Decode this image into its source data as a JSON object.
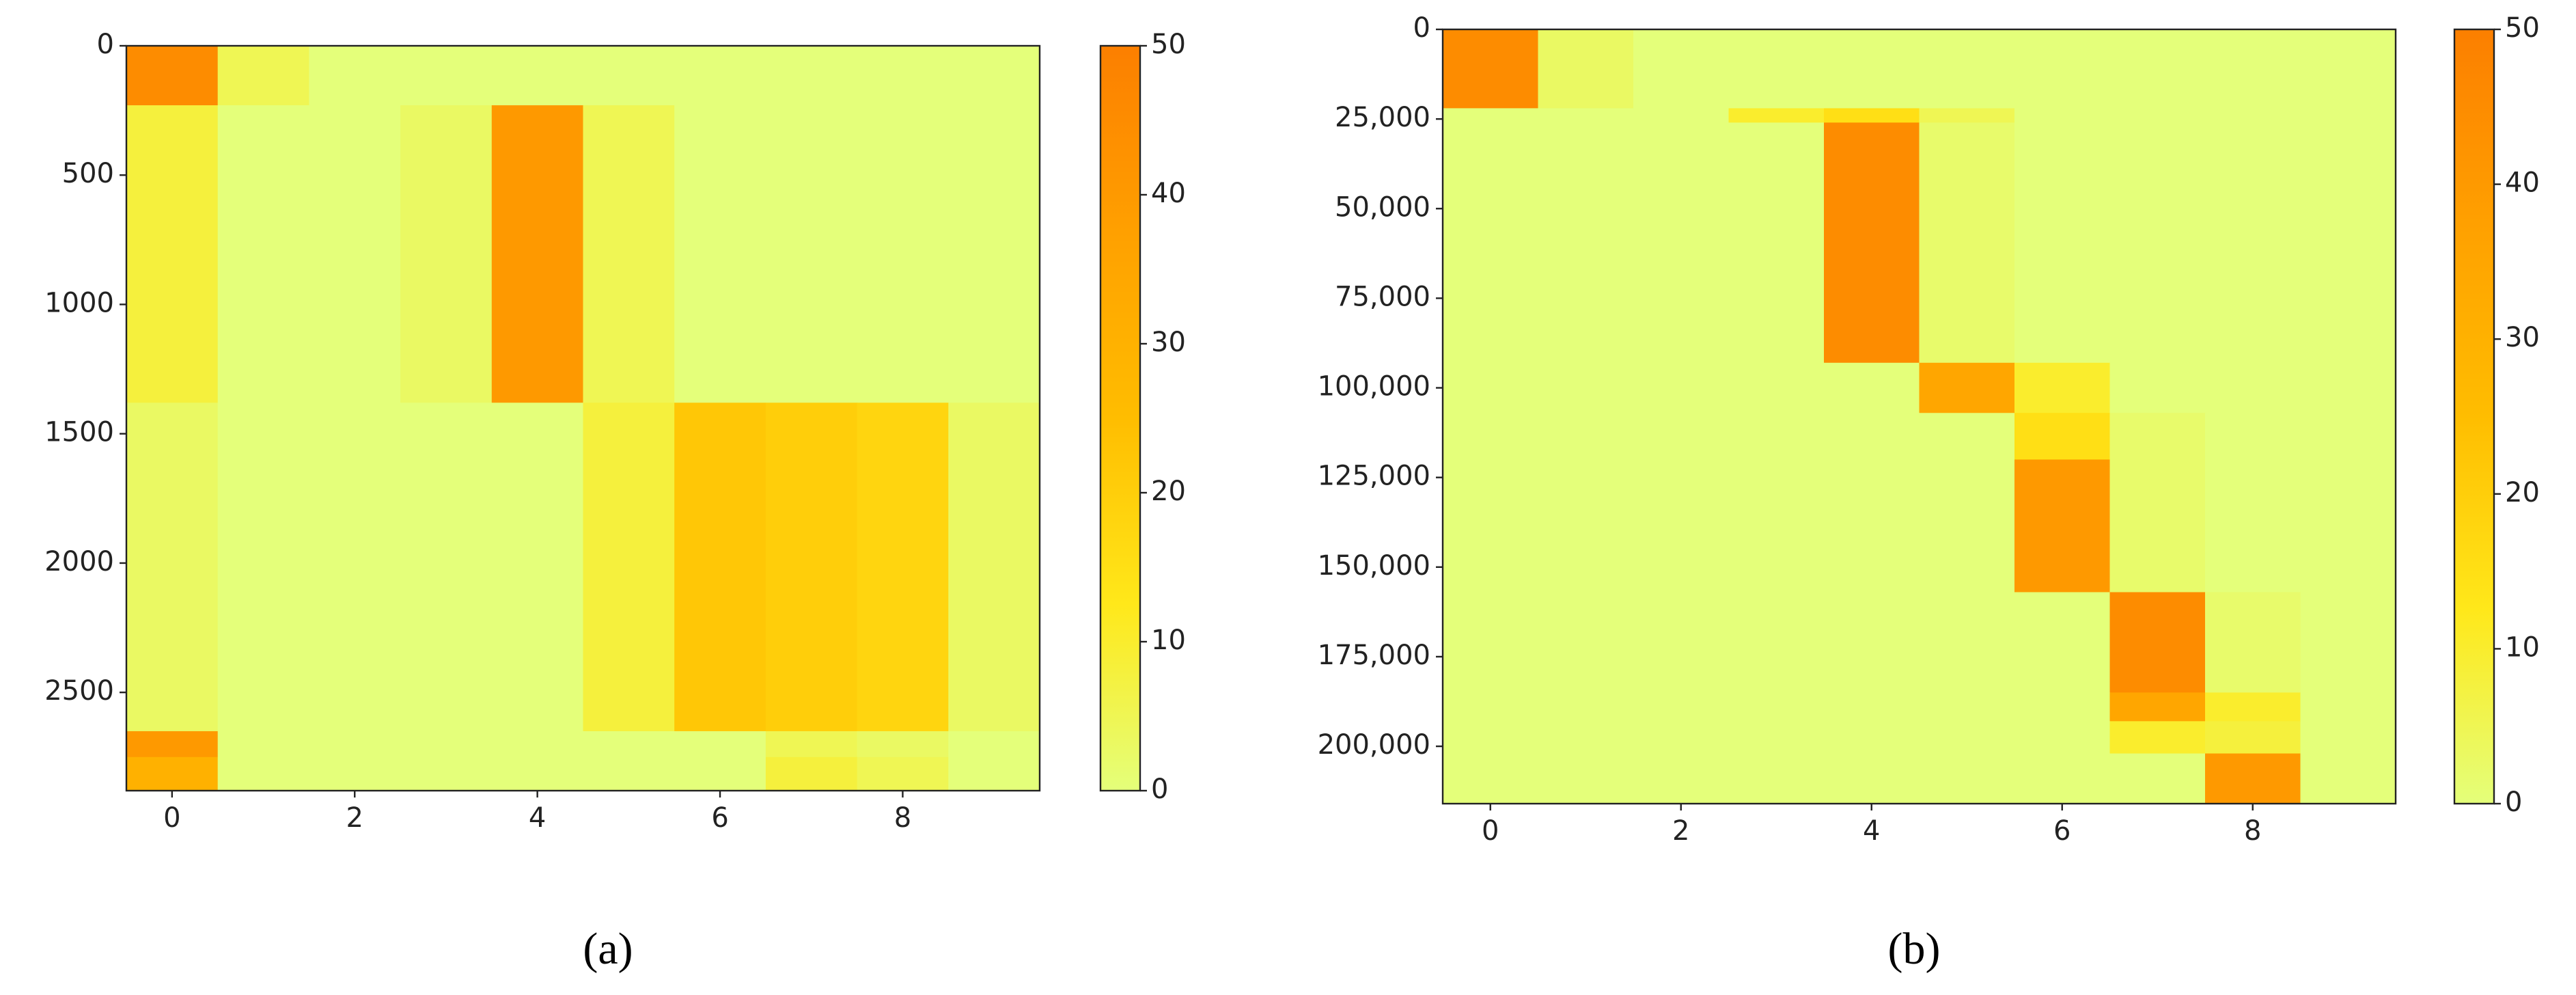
{
  "chart_data": [
    {
      "type": "heatmap",
      "caption": "(a)",
      "x": [
        0,
        1,
        2,
        3,
        4,
        5,
        6,
        7,
        8,
        9
      ],
      "xlim": [
        -0.5,
        9.5
      ],
      "xticks": [
        0,
        2,
        4,
        6,
        8
      ],
      "y_edges": [
        0,
        230,
        1380,
        2650,
        2750,
        2880
      ],
      "values": [
        [
          45,
          5,
          0,
          0,
          0,
          0,
          0,
          0,
          0,
          0
        ],
        [
          8,
          0,
          0,
          3,
          40,
          5,
          0,
          0,
          0,
          0
        ],
        [
          3,
          0,
          0,
          0,
          0,
          8,
          22,
          20,
          18,
          3
        ],
        [
          40,
          0,
          0,
          0,
          0,
          0,
          0,
          5,
          3,
          0
        ],
        [
          30,
          0,
          0,
          0,
          0,
          0,
          0,
          8,
          5,
          0
        ]
      ],
      "ylim": [
        2880,
        0
      ],
      "yticks": [
        0,
        500,
        1000,
        1500,
        2000,
        2500
      ],
      "clim": [
        0,
        50
      ],
      "cticks": [
        0,
        10,
        20,
        30,
        40,
        50
      ],
      "colormap": [
        "#e4ff7a",
        "#ffe81a",
        "#ffbd00",
        "#ffa000",
        "#fc7f00"
      ]
    },
    {
      "type": "heatmap",
      "caption": "(b)",
      "x": [
        0,
        1,
        2,
        3,
        4,
        5,
        6,
        7,
        8,
        9
      ],
      "xlim": [
        -0.5,
        9.5
      ],
      "xticks": [
        0,
        2,
        4,
        6,
        8
      ],
      "y_edges": [
        0,
        22000,
        26000,
        93000,
        107000,
        120000,
        157000,
        185000,
        193000,
        202000,
        216000
      ],
      "values": [
        [
          45,
          3,
          0,
          0,
          0,
          0,
          0,
          0,
          0,
          0
        ],
        [
          0,
          0,
          0,
          10,
          15,
          5,
          0,
          0,
          0,
          0
        ],
        [
          0,
          0,
          0,
          0,
          45,
          2,
          0,
          0,
          0,
          0
        ],
        [
          0,
          0,
          0,
          0,
          0,
          35,
          10,
          0,
          0,
          0
        ],
        [
          0,
          0,
          0,
          0,
          0,
          0,
          15,
          2,
          0,
          0
        ],
        [
          0,
          0,
          0,
          0,
          0,
          0,
          40,
          2,
          0,
          0
        ],
        [
          0,
          0,
          0,
          0,
          0,
          0,
          0,
          45,
          2,
          0
        ],
        [
          0,
          0,
          0,
          0,
          0,
          0,
          0,
          35,
          10,
          0
        ],
        [
          0,
          0,
          0,
          0,
          0,
          0,
          0,
          10,
          8,
          0
        ],
        [
          0,
          0,
          0,
          0,
          0,
          0,
          0,
          0,
          40,
          0
        ]
      ],
      "ylim": [
        216000,
        0
      ],
      "yticks": [
        0,
        {
          "value": 25000,
          "label": "25,000"
        },
        {
          "value": 50000,
          "label": "50,000"
        },
        {
          "value": 75000,
          "label": "75,000"
        },
        {
          "value": 100000,
          "label": "100,000"
        },
        {
          "value": 125000,
          "label": "125,000"
        },
        {
          "value": 150000,
          "label": "150,000"
        },
        {
          "value": 175000,
          "label": "175,000"
        },
        {
          "value": 200000,
          "label": "200,000"
        }
      ],
      "clim": [
        0,
        50
      ],
      "cticks": [
        0,
        10,
        20,
        30,
        40,
        50
      ],
      "colormap": [
        "#e4ff7a",
        "#ffe81a",
        "#ffbd00",
        "#ffa000",
        "#fc7f00"
      ]
    }
  ]
}
